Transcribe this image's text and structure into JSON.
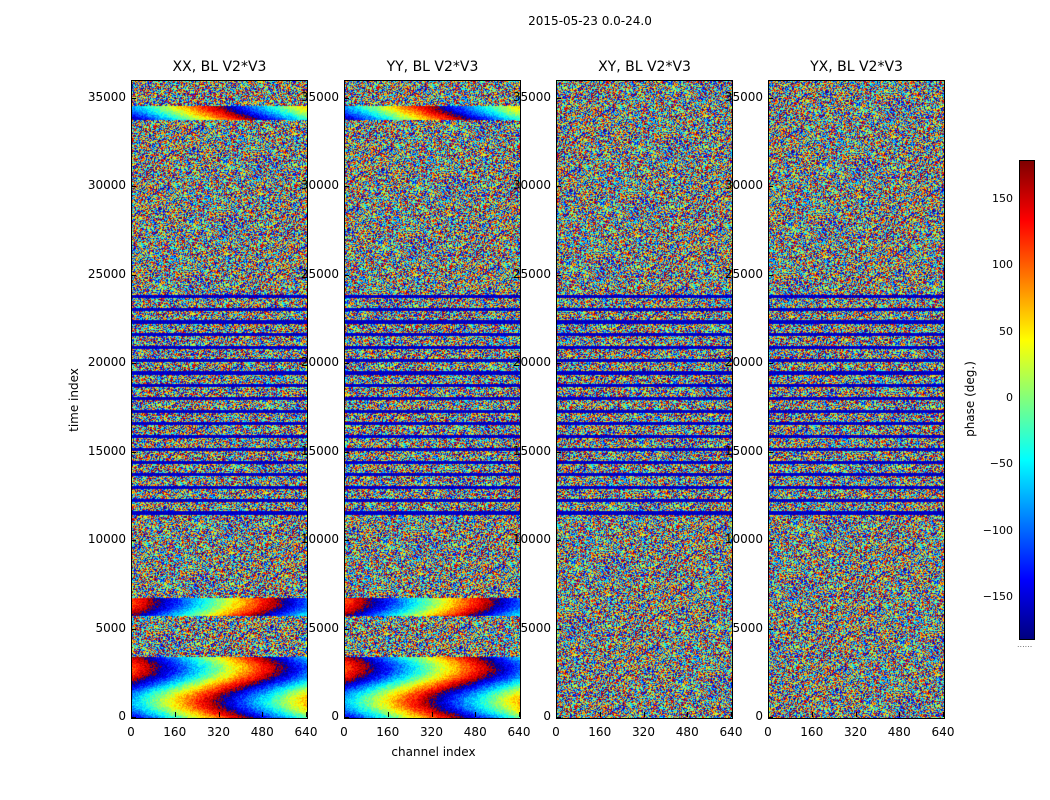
{
  "figure_title": "2015-05-23 0.0-24.0",
  "colorbar": {
    "label": "phase (deg.)",
    "ticks": [
      "150",
      "100",
      "50",
      "0",
      "−50",
      "−100",
      "−150"
    ],
    "tick_values": [
      150,
      100,
      50,
      0,
      -50,
      -100,
      -150
    ],
    "range": [
      -180,
      180
    ],
    "footer": "......",
    "colormap": [
      "#00007f",
      "#0000ff",
      "#007fff",
      "#00ffff",
      "#7fff7f",
      "#ffff00",
      "#ff7f00",
      "#ff0000",
      "#7f0000"
    ]
  },
  "chart_data": [
    {
      "type": "heatmap",
      "title": "XX, BL V2*V3",
      "xlabel": "channel index",
      "ylabel": "time index",
      "xlim": [
        0,
        640
      ],
      "ylim": [
        0,
        36000
      ],
      "xticks": [
        "0",
        "160",
        "320",
        "480",
        "640"
      ],
      "yticks": [
        "0",
        "5000",
        "10000",
        "15000",
        "20000",
        "25000",
        "30000",
        "35000"
      ],
      "xtick_values": [
        0,
        160,
        320,
        480,
        640
      ],
      "ytick_values": [
        0,
        5000,
        10000,
        15000,
        20000,
        25000,
        30000,
        35000
      ],
      "value": "phase (deg.)",
      "pattern": "coherent",
      "coherent_time_ranges": [
        [
          0,
          3500
        ],
        [
          5800,
          6800
        ],
        [
          33800,
          34600
        ]
      ]
    },
    {
      "type": "heatmap",
      "title": "YY, BL V2*V3",
      "xlabel": "channel index",
      "ylabel": "",
      "xlim": [
        0,
        640
      ],
      "ylim": [
        0,
        36000
      ],
      "xticks": [
        "0",
        "160",
        "320",
        "480",
        "640"
      ],
      "yticks": [
        "0",
        "5000",
        "10000",
        "15000",
        "20000",
        "25000",
        "30000",
        "35000"
      ],
      "xtick_values": [
        0,
        160,
        320,
        480,
        640
      ],
      "ytick_values": [
        0,
        5000,
        10000,
        15000,
        20000,
        25000,
        30000,
        35000
      ],
      "value": "phase (deg.)",
      "pattern": "coherent",
      "coherent_time_ranges": [
        [
          0,
          3500
        ],
        [
          5800,
          6800
        ],
        [
          33800,
          34600
        ]
      ]
    },
    {
      "type": "heatmap",
      "title": "XY, BL V2*V3",
      "xlabel": "",
      "ylabel": "",
      "xlim": [
        0,
        640
      ],
      "ylim": [
        0,
        36000
      ],
      "xticks": [
        "0",
        "160",
        "320",
        "480",
        "640"
      ],
      "yticks": [
        "0",
        "5000",
        "10000",
        "15000",
        "20000",
        "25000",
        "30000",
        "35000"
      ],
      "xtick_values": [
        0,
        160,
        320,
        480,
        640
      ],
      "ytick_values": [
        0,
        5000,
        10000,
        15000,
        20000,
        25000,
        30000,
        35000
      ],
      "value": "phase (deg.)",
      "pattern": "noise",
      "coherent_time_ranges": []
    },
    {
      "type": "heatmap",
      "title": "YX, BL V2*V3",
      "xlabel": "",
      "ylabel": "",
      "xlim": [
        0,
        640
      ],
      "ylim": [
        0,
        36000
      ],
      "xticks": [
        "0",
        "160",
        "320",
        "480",
        "640"
      ],
      "yticks": [
        "0",
        "5000",
        "10000",
        "15000",
        "20000",
        "25000",
        "30000",
        "35000"
      ],
      "xtick_values": [
        0,
        160,
        320,
        480,
        640
      ],
      "ytick_values": [
        0,
        5000,
        10000,
        15000,
        20000,
        25000,
        30000,
        35000
      ],
      "value": "phase (deg.)",
      "pattern": "noise",
      "coherent_time_ranges": []
    }
  ]
}
